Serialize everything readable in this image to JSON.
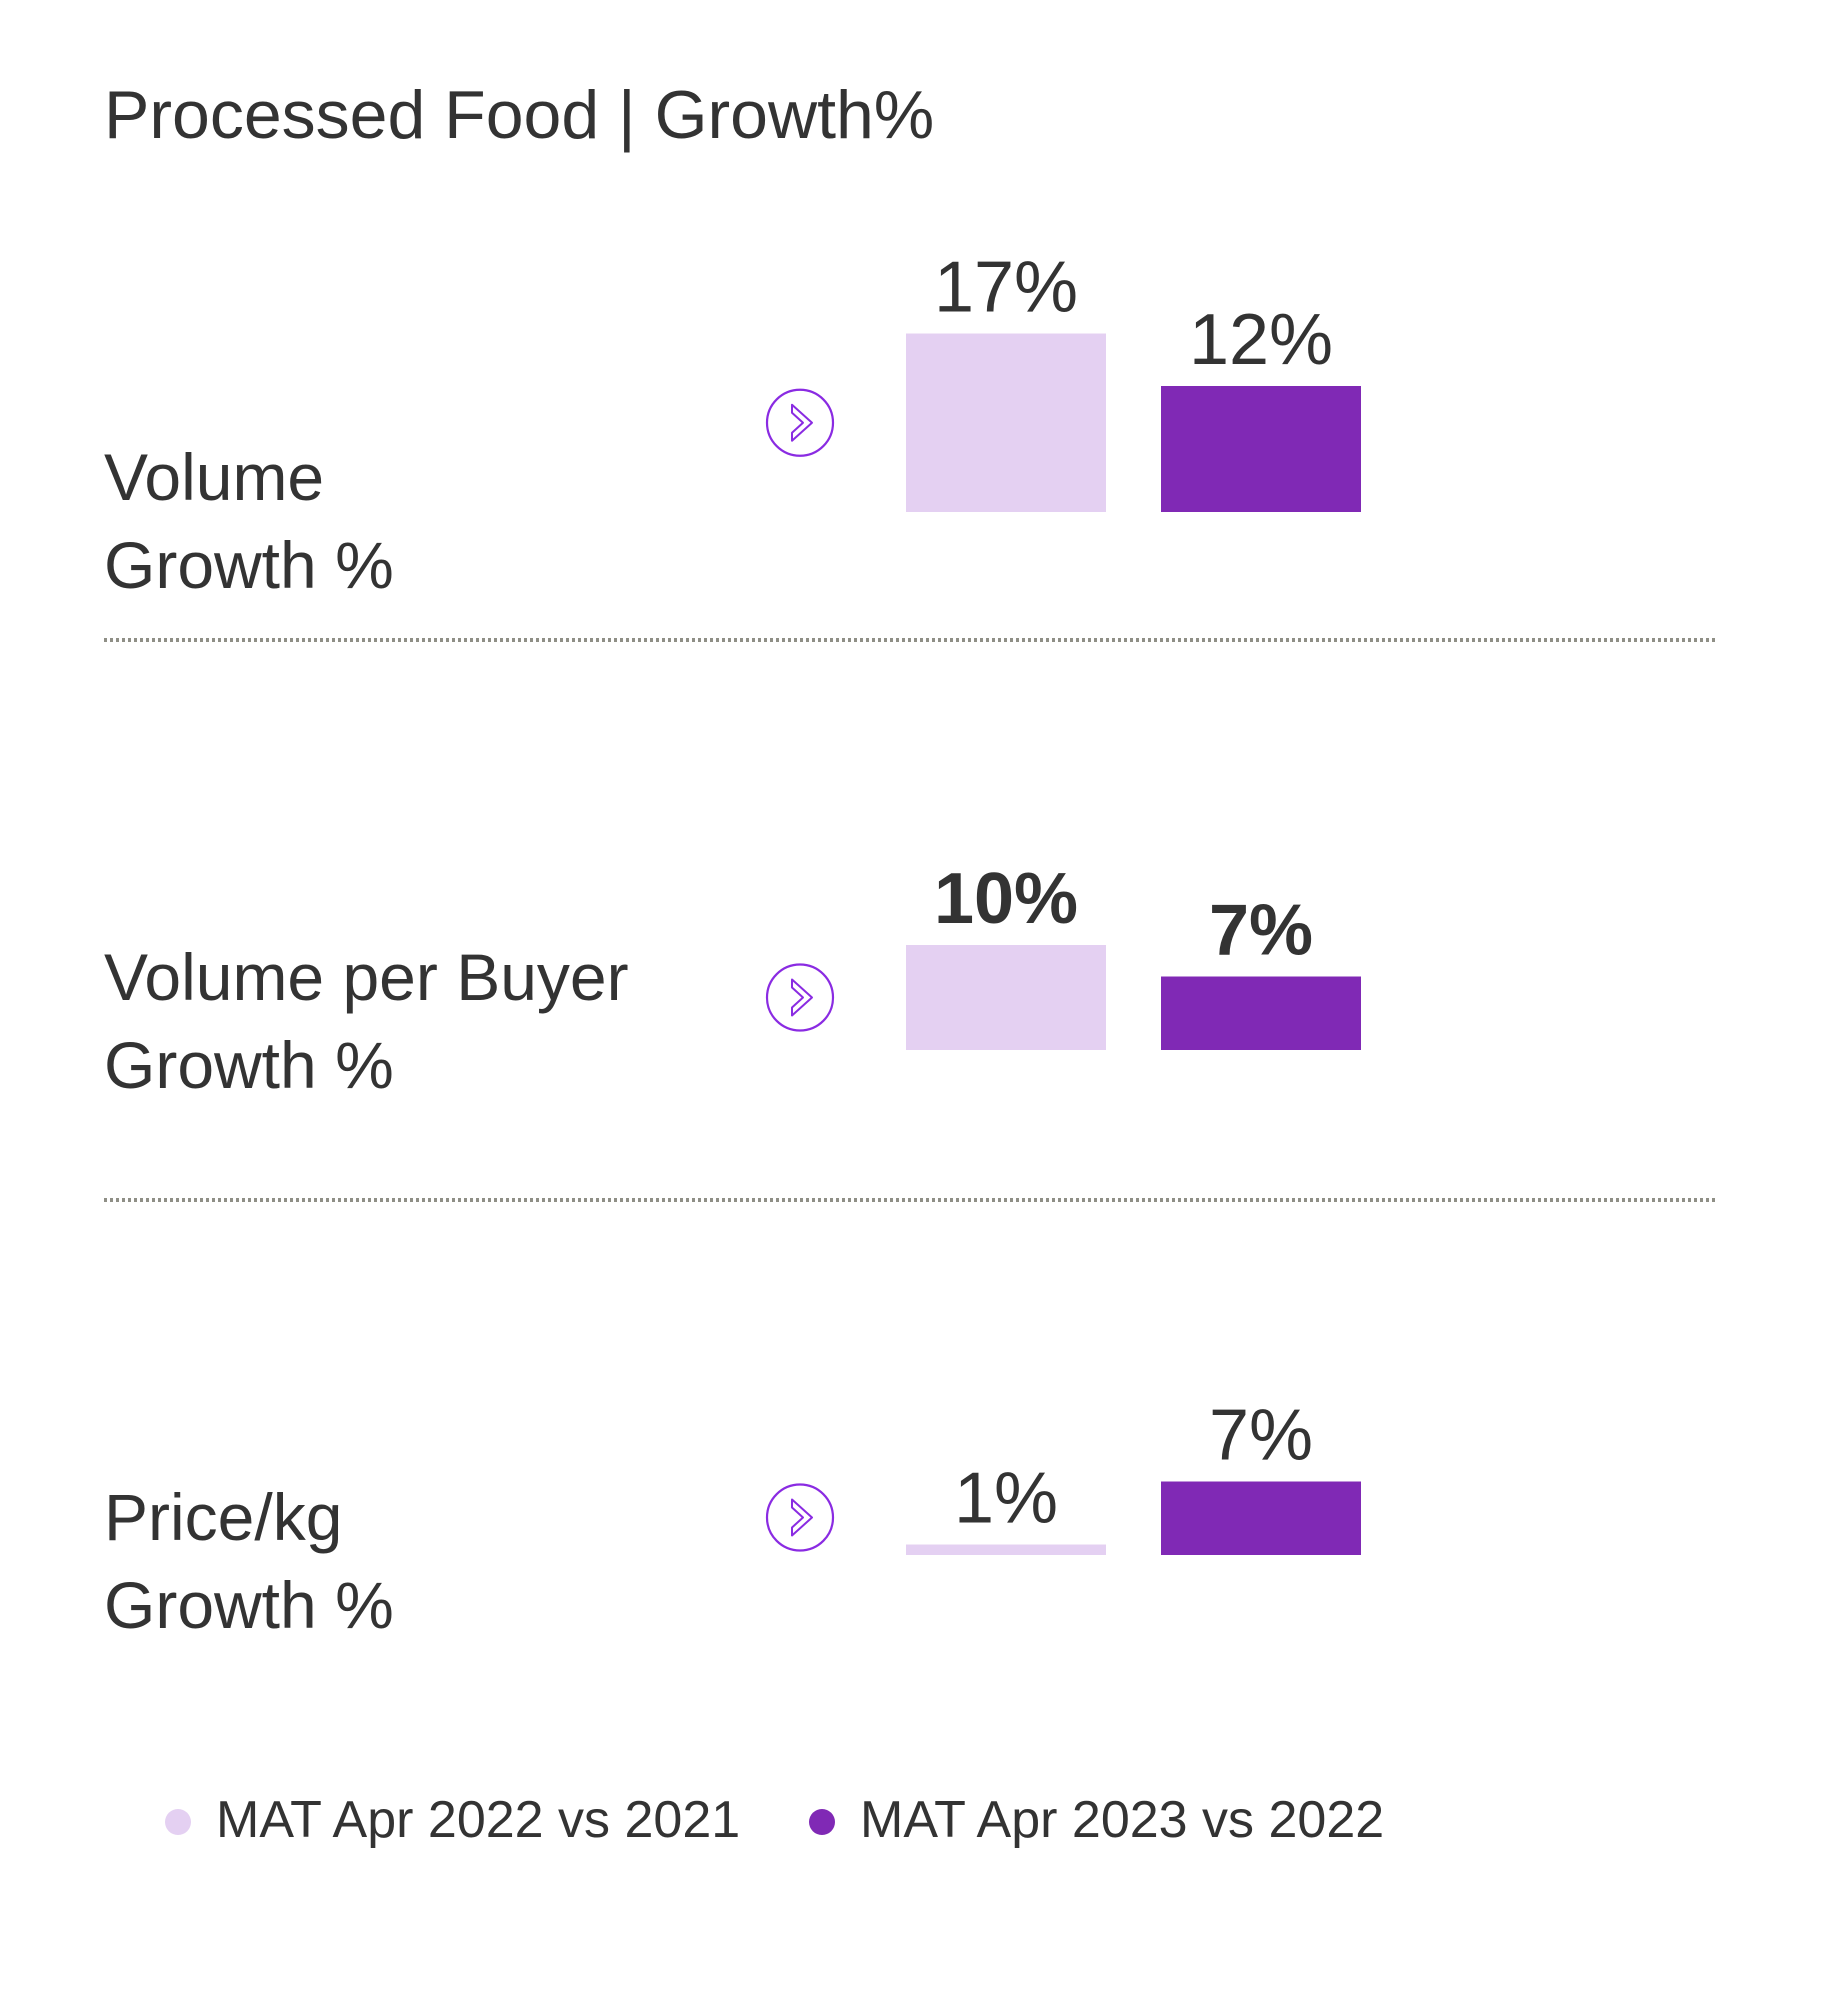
{
  "chart_data": {
    "type": "bar",
    "title": "Processed Food | Growth%",
    "categories": [
      {
        "label_line1": "Volume",
        "label_line2": "Growth %"
      },
      {
        "label_line1": "Volume per Buyer",
        "label_line2": "Growth %"
      },
      {
        "label_line1": "Price/kg",
        "label_line2": "Growth %"
      }
    ],
    "series": [
      {
        "name": "MAT Apr 2022 vs 2021",
        "color": "#e4d0f2",
        "values": [
          17,
          10,
          1
        ],
        "labels": [
          "17%",
          "10%",
          "1%"
        ]
      },
      {
        "name": "MAT Apr 2023 vs 2022",
        "color": "#8029b5",
        "values": [
          12,
          7,
          7
        ],
        "labels": [
          "12%",
          "7%",
          "7%"
        ]
      }
    ],
    "ylim": [
      0,
      17
    ],
    "label_bold": [
      false,
      true,
      false
    ],
    "arrow_icon": "chevron-right-circle-icon",
    "icon_color": "#8a2be2",
    "divider_color": "#8f8f86",
    "grid": false,
    "legend_position": "bottom"
  }
}
